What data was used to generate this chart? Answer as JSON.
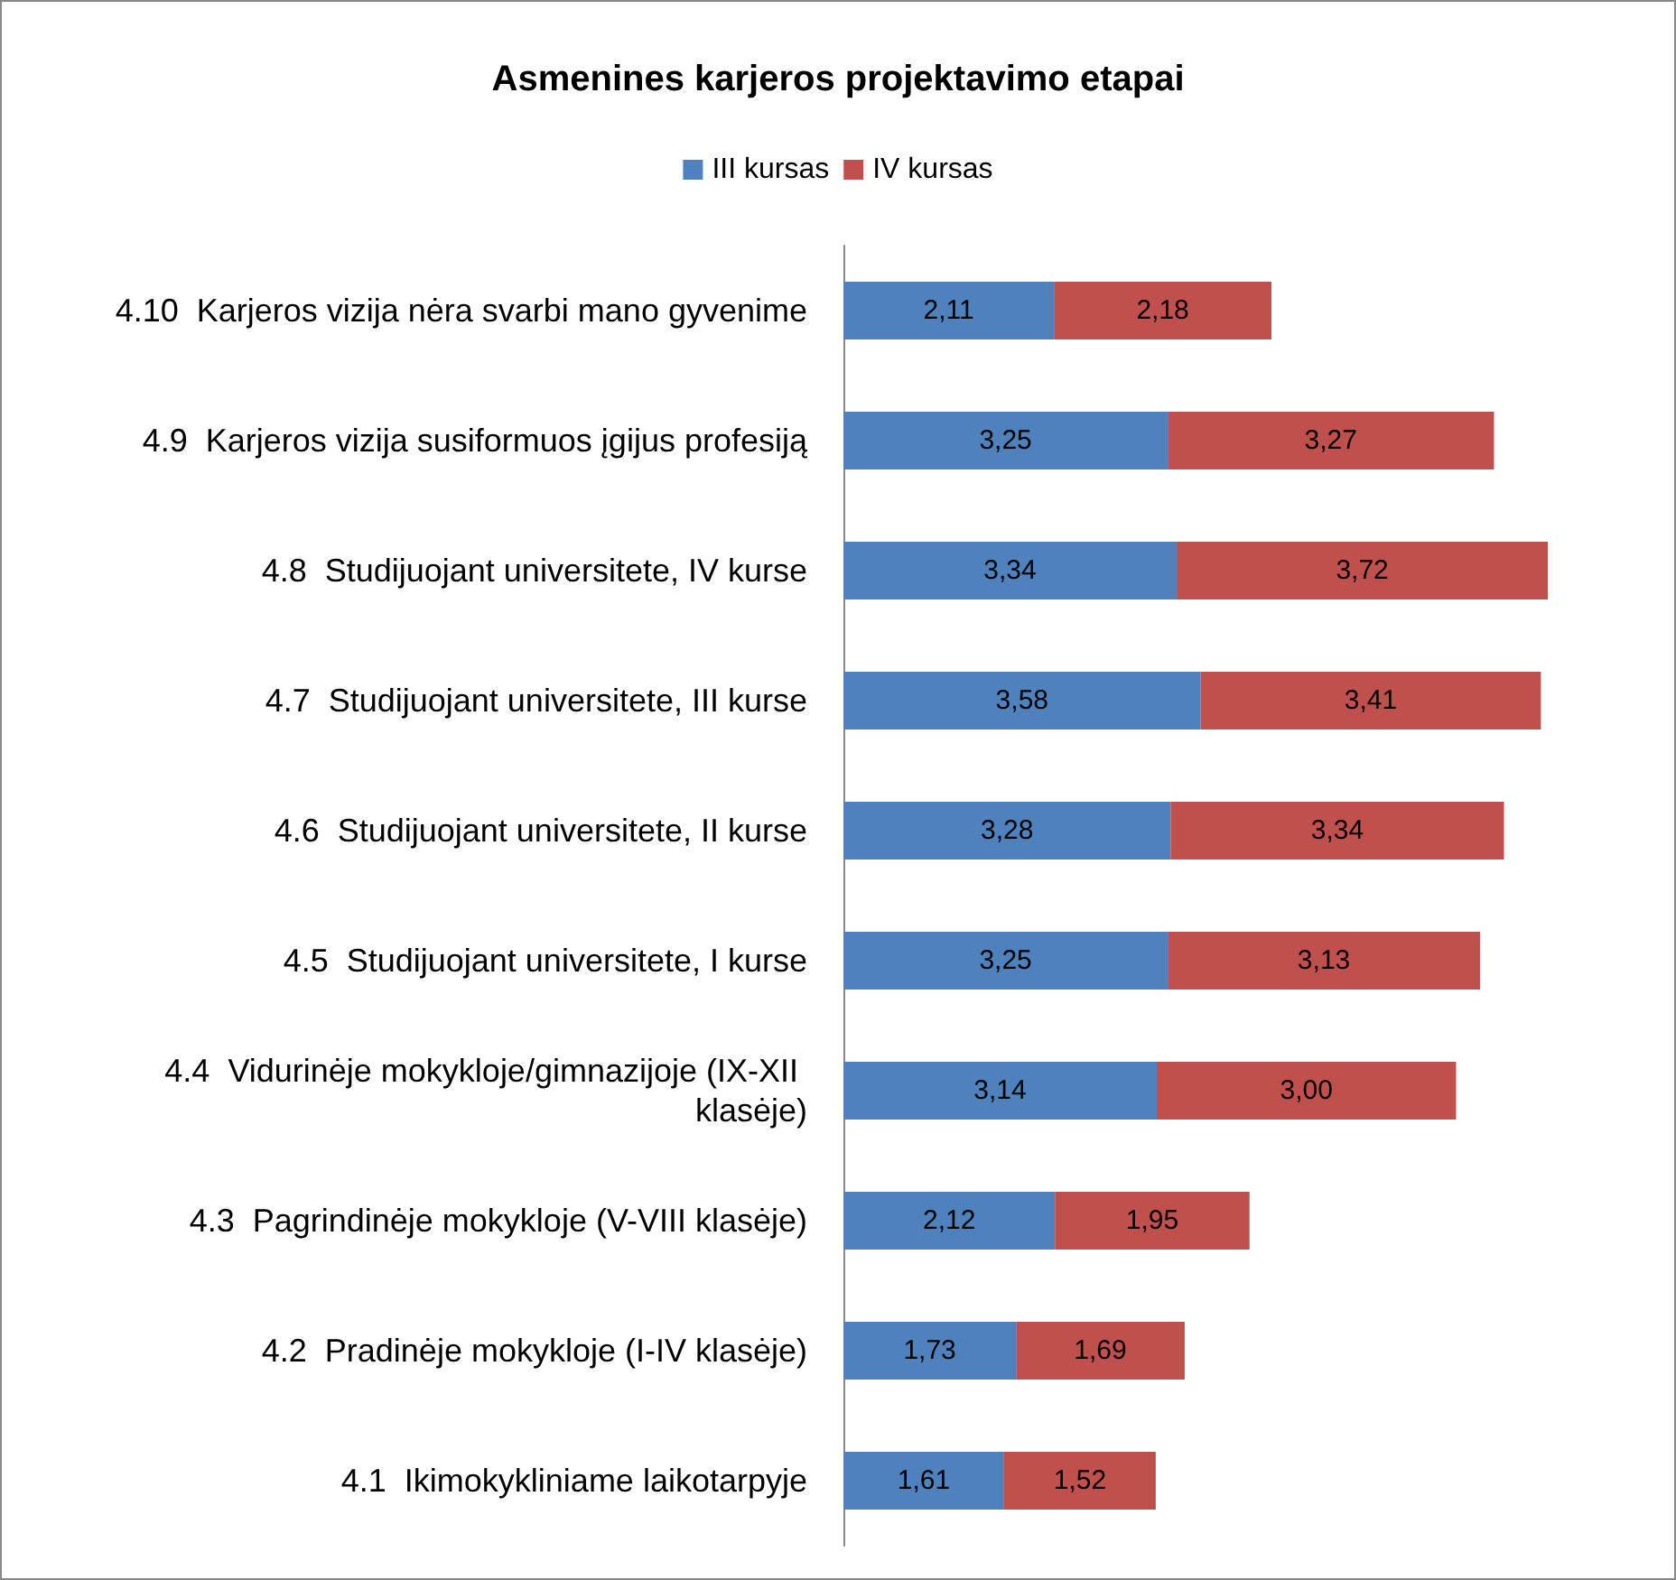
{
  "chart_data": {
    "type": "bar",
    "orientation": "horizontal",
    "stacked": true,
    "title": "Asmenines karjeros projektavimo etapai",
    "legend": "top",
    "categories": [
      "4.10  Karjeros vizija nėra svarbi mano gyvenime",
      "4.9  Karjeros vizija susiformuos įgijus profesiją",
      "4.8  Studijuojant universitete, IV kurse",
      "4.7  Studijuojant universitete, III kurse",
      "4.6  Studijuojant universitete, II kurse",
      "4.5  Studijuojant universitete, I kurse",
      "4.4  Vidurinėje mokykloje/gimnazijoje (IX-XII klasėje)",
      "4.3  Pagrindinėje mokykloje (V-VIII klasėje)",
      "4.2  Pradinėje mokykloje (I-IV klasėje)",
      "4.1  Ikimokykliniame laikotarpyje"
    ],
    "series": [
      {
        "name": "III kursas",
        "color": "#4f81bd",
        "values": [
          2.11,
          3.25,
          3.34,
          3.58,
          3.28,
          3.25,
          3.14,
          2.12,
          1.73,
          1.61
        ],
        "value_labels": [
          "2,11",
          "3,25",
          "3,34",
          "3,58",
          "3,28",
          "3,25",
          "3,14",
          "2,12",
          "1,73",
          "1,61"
        ]
      },
      {
        "name": "IV kursas",
        "color": "#c0504d",
        "values": [
          2.18,
          3.27,
          3.72,
          3.41,
          3.34,
          3.13,
          3.0,
          1.95,
          1.69,
          1.52
        ],
        "value_labels": [
          "2,18",
          "3,27",
          "3,72",
          "3,41",
          "3,34",
          "3,13",
          "3,00",
          "1,95",
          "1,69",
          "1,52"
        ]
      }
    ]
  }
}
